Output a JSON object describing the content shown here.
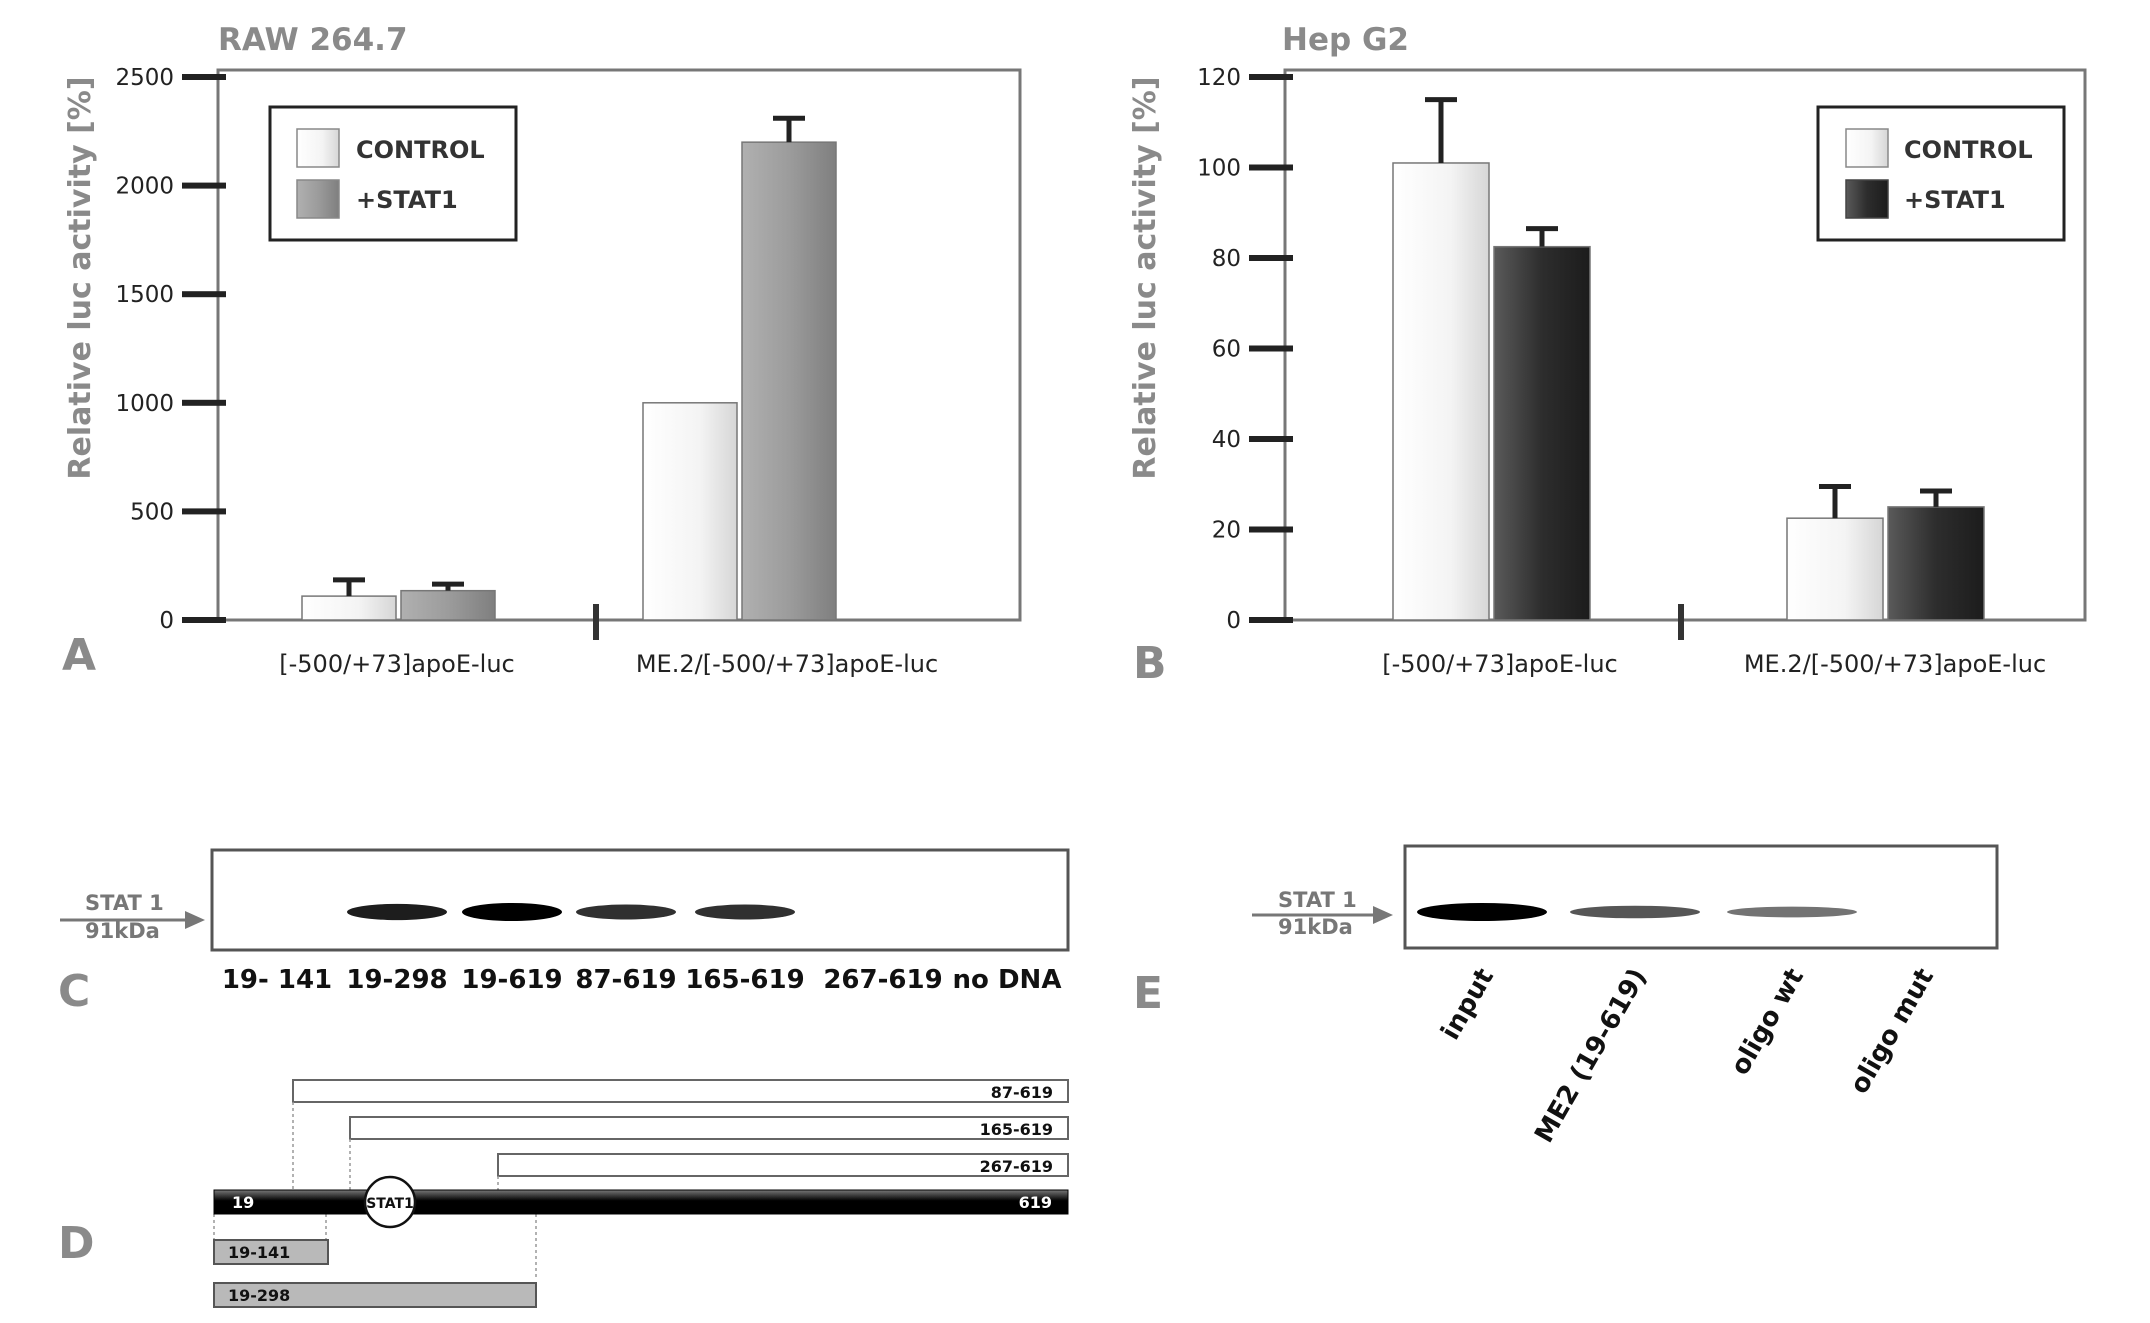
{
  "chart_data": [
    {
      "type": "bar",
      "panel": "A",
      "title": "RAW 264.7",
      "ylabel": "Relative luc activity [%]",
      "xlabel": "",
      "ylim": [
        0,
        2500
      ],
      "yticks": [
        0,
        500,
        1000,
        1500,
        2000,
        2500
      ],
      "categories": [
        "[-500/+73]apoE-luc",
        "ME.2/[-500/+73]apoE-luc"
      ],
      "series": [
        {
          "name": "CONTROL",
          "values": [
            110,
            1000
          ],
          "errors": [
            75,
            0
          ],
          "color": "#efefef"
        },
        {
          "name": "+STAT1",
          "values": [
            135,
            2200
          ],
          "errors": [
            30,
            110
          ],
          "color": "#9a9a9a"
        }
      ],
      "legend_position": "top-left",
      "grid": false
    },
    {
      "type": "bar",
      "panel": "B",
      "title": "Hep G2",
      "ylabel": "Relative luc activity [%]",
      "xlabel": "",
      "ylim": [
        0,
        120
      ],
      "yticks": [
        0,
        20,
        40,
        60,
        80,
        100,
        120
      ],
      "categories": [
        "[-500/+73]apoE-luc",
        "ME.2/[-500/+73]apoE-luc"
      ],
      "series": [
        {
          "name": "CONTROL",
          "values": [
            101,
            22.5
          ],
          "errors": [
            14,
            7
          ],
          "color": "#efefef"
        },
        {
          "name": "+STAT1",
          "values": [
            82.5,
            25
          ],
          "errors": [
            4,
            3.5
          ],
          "color": "#2e2e2e"
        }
      ],
      "legend_position": "top-right",
      "grid": false
    }
  ],
  "panel_c": {
    "letter": "C",
    "marker_line1": "STAT 1",
    "marker_line2": "91kDa",
    "lanes": [
      "19- 141",
      "19-298",
      "19-619",
      "87-619",
      "165-619",
      "267-619",
      "no DNA"
    ],
    "band_intensity": [
      0,
      0.85,
      1.0,
      0.75,
      0.75,
      0,
      0
    ]
  },
  "panel_d": {
    "letter": "D",
    "full_start": "19",
    "full_end": "619",
    "site_label": "STAT1",
    "fragments_top": [
      "87-619",
      "165-619",
      "267-619"
    ],
    "fragments_bottom": [
      "19-141",
      "19-298"
    ]
  },
  "panel_e": {
    "letter": "E",
    "marker_line1": "STAT 1",
    "marker_line2": "91kDa",
    "lanes": [
      "input",
      "ME2 (19-619)",
      "oligo wt",
      "oligo mut"
    ],
    "band_intensity": [
      1.0,
      0.55,
      0.4,
      0
    ]
  }
}
